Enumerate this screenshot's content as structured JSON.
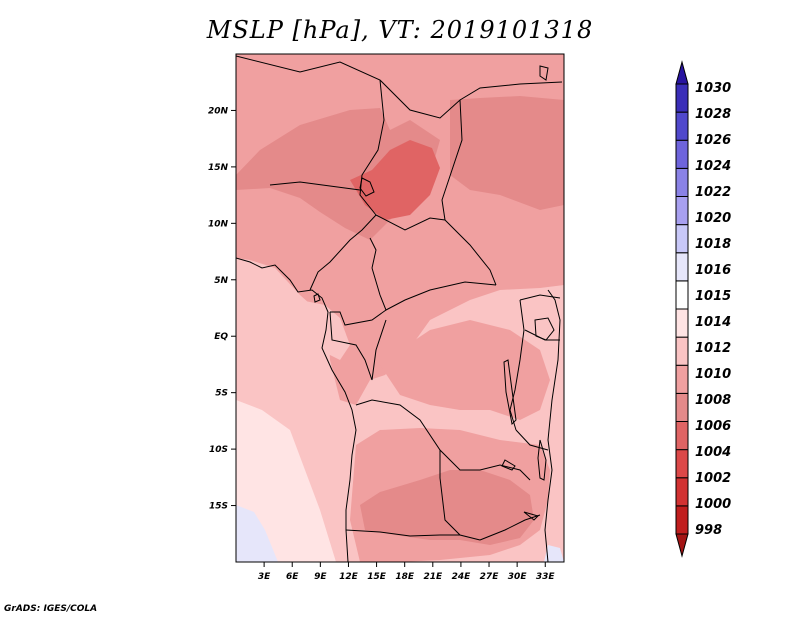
{
  "title": "MSLP [hPa], VT: 2019101318",
  "footer": "GrADS: IGES/COLA",
  "map": {
    "lon_range": [
      0,
      35
    ],
    "lat_range": [
      -20,
      25
    ],
    "lon_ticks": [
      {
        "lon": 3,
        "label": "3E"
      },
      {
        "lon": 6,
        "label": "6E"
      },
      {
        "lon": 9,
        "label": "9E"
      },
      {
        "lon": 12,
        "label": "12E"
      },
      {
        "lon": 15,
        "label": "15E"
      },
      {
        "lon": 18,
        "label": "18E"
      },
      {
        "lon": 21,
        "label": "21E"
      },
      {
        "lon": 24,
        "label": "24E"
      },
      {
        "lon": 27,
        "label": "27E"
      },
      {
        "lon": 30,
        "label": "30E"
      },
      {
        "lon": 33,
        "label": "33E"
      }
    ],
    "lat_ticks": [
      {
        "lat": 20,
        "label": "20N"
      },
      {
        "lat": 15,
        "label": "15N"
      },
      {
        "lat": 10,
        "label": "10N"
      },
      {
        "lat": 5,
        "label": "5N"
      },
      {
        "lat": 0,
        "label": "EQ"
      },
      {
        "lat": -5,
        "label": "5S"
      },
      {
        "lat": -10,
        "label": "10S"
      },
      {
        "lat": -15,
        "label": "15S"
      }
    ]
  },
  "colorbar": {
    "levels": [
      {
        "label": "998",
        "color": "#a31414"
      },
      {
        "label": "1000",
        "color": "#c01e1e"
      },
      {
        "label": "1002",
        "color": "#d23232"
      },
      {
        "label": "1004",
        "color": "#dc4848"
      },
      {
        "label": "1006",
        "color": "#e06464"
      },
      {
        "label": "1008",
        "color": "#e48a8a"
      },
      {
        "label": "1010",
        "color": "#f0a0a0"
      },
      {
        "label": "1012",
        "color": "#fac4c4"
      },
      {
        "label": "1014",
        "color": "#ffe4e4"
      },
      {
        "label": "1015",
        "color": "#ffffff"
      },
      {
        "label": "1016",
        "color": "#e6e6fa"
      },
      {
        "label": "1018",
        "color": "#c8c8f8"
      },
      {
        "label": "1020",
        "color": "#a8a0f0"
      },
      {
        "label": "1022",
        "color": "#8a82e6"
      },
      {
        "label": "1024",
        "color": "#6e64dc"
      },
      {
        "label": "1026",
        "color": "#5048cc"
      },
      {
        "label": "1028",
        "color": "#3a2eb8"
      },
      {
        "label": "1030",
        "color": "#2814a0"
      }
    ]
  },
  "fields": [
    {
      "name": "sw-ocean",
      "color": "#fac4c4"
    },
    {
      "name": "south-atlantic-tongue",
      "color": "#ffe4e4"
    },
    {
      "name": "southwest-corner",
      "color": "#e6e6fa"
    },
    {
      "name": "se-corner",
      "color": "#e6e6fa"
    },
    {
      "name": "north-band",
      "color": "#f0a0a0"
    },
    {
      "name": "sahel-low",
      "color": "#e48a8a"
    },
    {
      "name": "sudan-low",
      "color": "#e48a8a"
    },
    {
      "name": "chad-core",
      "color": "#e06464"
    },
    {
      "name": "congo-basin",
      "color": "#f0a0a0"
    },
    {
      "name": "angola-zambia",
      "color": "#f0a0a0"
    },
    {
      "name": "zambia-low",
      "color": "#e48a8a"
    },
    {
      "name": "equatorial-west",
      "color": "#fac4c4"
    }
  ]
}
